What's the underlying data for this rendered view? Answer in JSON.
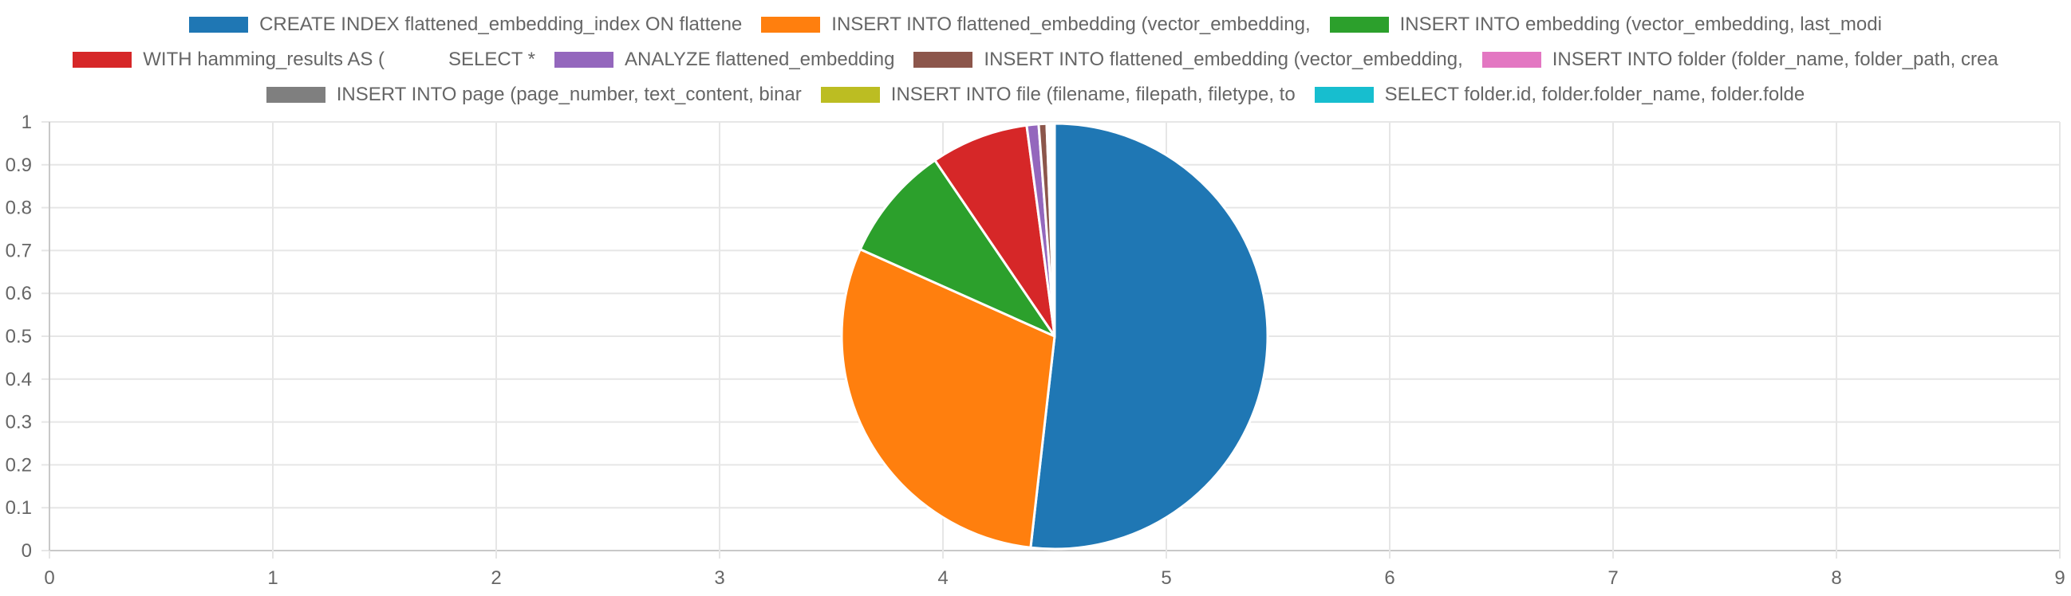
{
  "chart_data": {
    "type": "pie",
    "title": "",
    "xlabel": "",
    "ylabel": "",
    "xlim": [
      0,
      9
    ],
    "ylim": [
      0,
      1
    ],
    "x_ticks": [
      "0",
      "1",
      "2",
      "3",
      "4",
      "5",
      "6",
      "7",
      "8",
      "9"
    ],
    "y_ticks": [
      "1",
      "0.9",
      "0.8",
      "0.7",
      "0.6",
      "0.5",
      "0.4",
      "0.3",
      "0.2",
      "0.1",
      "0"
    ],
    "grid": true,
    "legend_position": "top",
    "slices": [
      {
        "label": "CREATE INDEX flattened_embedding_index ON flattene",
        "value": 51.8,
        "color": "#1f77b4"
      },
      {
        "label": "INSERT INTO flattened_embedding (vector_embedding,",
        "value": 29.9,
        "color": "#ff7f0e"
      },
      {
        "label": "INSERT INTO embedding (vector_embedding, last_modi",
        "value": 8.8,
        "color": "#2ca02c"
      },
      {
        "label": "WITH hamming_results AS (            SELECT *",
        "value": 7.4,
        "color": "#d62728"
      },
      {
        "label": "ANALYZE flattened_embedding",
        "value": 0.9,
        "color": "#9467bd"
      },
      {
        "label": "INSERT INTO flattened_embedding (vector_embedding,",
        "value": 0.6,
        "color": "#8c564b"
      },
      {
        "label": "INSERT INTO folder (folder_name, folder_path, crea",
        "value": 0.15,
        "color": "#e377c2"
      },
      {
        "label": "INSERT INTO page (page_number, text_content, binar",
        "value": 0.15,
        "color": "#7f7f7f"
      },
      {
        "label": "INSERT INTO file (filename, filepath, filetype, to",
        "value": 0.15,
        "color": "#bcbd22"
      },
      {
        "label": "SELECT folder.id, folder.folder_name, folder.folde",
        "value": 0.15,
        "color": "#17becf"
      }
    ]
  }
}
